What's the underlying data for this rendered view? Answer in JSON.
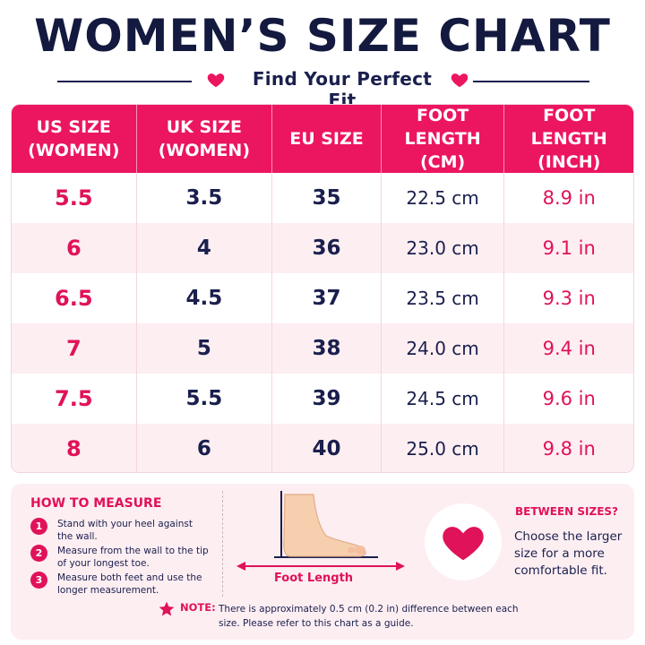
{
  "title": "WOMEN’S SIZE CHART",
  "subtitle": "Find Your Perfect Fit",
  "colors": {
    "accent": "#ec1560",
    "navy": "#1a1f4d",
    "pink_light": "#fdeef2"
  },
  "table": {
    "headers": [
      "US SIZE\n(WOMEN)",
      "UK SIZE\n(WOMEN)",
      "EU SIZE",
      "FOOT LENGTH\n(CM)",
      "FOOT LENGTH\n(INCH)"
    ],
    "rows": [
      [
        "5.5",
        "3.5",
        "35",
        "22.5 cm",
        "8.9 in"
      ],
      [
        "6",
        "4",
        "36",
        "23.0 cm",
        "9.1 in"
      ],
      [
        "6.5",
        "4.5",
        "37",
        "23.5 cm",
        "9.3 in"
      ],
      [
        "7",
        "5",
        "38",
        "24.0 cm",
        "9.4 in"
      ],
      [
        "7.5",
        "5.5",
        "39",
        "24.5 cm",
        "9.6 in"
      ],
      [
        "8",
        "6",
        "40",
        "25.0 cm",
        "9.8 in"
      ]
    ]
  },
  "how_to": {
    "title": "HOW TO MEASURE",
    "steps": [
      {
        "num": "1",
        "text": "Stand with your heel against the wall."
      },
      {
        "num": "2",
        "text": "Measure from the wall to the tip of your longest toe."
      },
      {
        "num": "3",
        "text": "Measure both feet and use the longer measurement."
      }
    ]
  },
  "foot_label": "Foot Length",
  "between": {
    "title": "BETWEEN SIZES?",
    "text": "Choose the larger size for a more comfortable fit."
  },
  "note": {
    "label": "NOTE:",
    "text": "There is approximately 0.5 cm (0.2 in) difference between each size. Please refer to this chart as a guide."
  },
  "icons": [
    "heart-icon",
    "foot-icon",
    "star-icon"
  ]
}
